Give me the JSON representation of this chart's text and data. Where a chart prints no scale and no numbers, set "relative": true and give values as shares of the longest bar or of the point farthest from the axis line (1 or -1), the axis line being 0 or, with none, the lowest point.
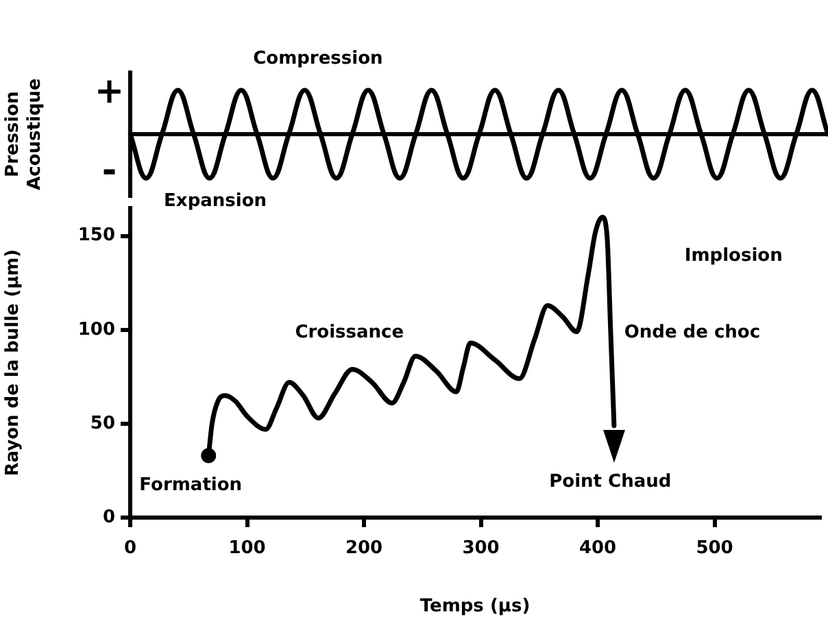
{
  "chart_data": [
    {
      "type": "line",
      "ylabel": "Pression\nAcoustique",
      "annotations": [
        "Compression",
        "Expansion",
        "+",
        "-"
      ],
      "relative": true,
      "categories": [
        null,
        null,
        null,
        null,
        null,
        null,
        null,
        null,
        null,
        null,
        null,
        null,
        null,
        null,
        null,
        null,
        null,
        null,
        null,
        null,
        null,
        null,
        null,
        null,
        null,
        null,
        null,
        null,
        null,
        null,
        null,
        null,
        null,
        null,
        null,
        null,
        null,
        null,
        null,
        null,
        null,
        null,
        null,
        null,
        null
      ],
      "series": [
        {
          "color": "#000000",
          "values": [
            0,
            -1,
            0,
            1,
            0,
            -1,
            0,
            1,
            0,
            -1,
            0,
            1,
            0,
            -1,
            0,
            1,
            0,
            -1,
            0,
            1,
            0,
            -1,
            0,
            1,
            0,
            -1,
            0,
            1,
            0,
            -1,
            0,
            1,
            0,
            -1,
            0,
            1,
            0,
            -1,
            0,
            1,
            0,
            -1,
            0,
            1,
            0
          ]
        }
      ],
      "grid": false,
      "legend": false,
      "tick_labels": false,
      "marker": "none",
      "line_style": "solid"
    },
    {
      "type": "line",
      "xlabel": "Temps (µs)",
      "ylabel": "Rayon de la bulle (µm)",
      "annotations": [
        {
          "text": "Formation",
          "x": 67,
          "y": 33
        },
        "Croissance",
        "Implosion",
        "Onde de choc",
        "Point Chaud"
      ],
      "series": [
        {
          "color": "#000000",
          "x": [
            67,
            70,
            75,
            81,
            90,
            100,
            116,
            125,
            136,
            148,
            161,
            175,
            190,
            207,
            224,
            234,
            244,
            262,
            279,
            285,
            291,
            312,
            333,
            346,
            357,
            370,
            382,
            392,
            398,
            404,
            408,
            411,
            414
          ],
          "values": [
            33,
            50,
            62,
            65,
            62,
            54,
            47,
            58,
            72,
            65,
            53,
            66,
            79,
            72,
            61,
            72,
            86,
            78,
            67,
            80,
            93,
            84,
            74,
            95,
            113,
            107,
            99,
            130,
            152,
            160,
            150,
            100,
            49
          ],
          "marker": "none"
        },
        {
          "type": "scatter",
          "color": "#000000",
          "x": [
            67
          ],
          "values": [
            33
          ],
          "marker": "circle"
        }
      ],
      "xlim": [
        0,
        590
      ],
      "xticks": [
        0,
        100,
        200,
        300,
        400,
        500
      ],
      "ylim": [
        0,
        165
      ],
      "yticks": [
        0,
        50,
        100,
        150
      ],
      "grid": false,
      "legend": false,
      "line_style": "solid"
    }
  ]
}
